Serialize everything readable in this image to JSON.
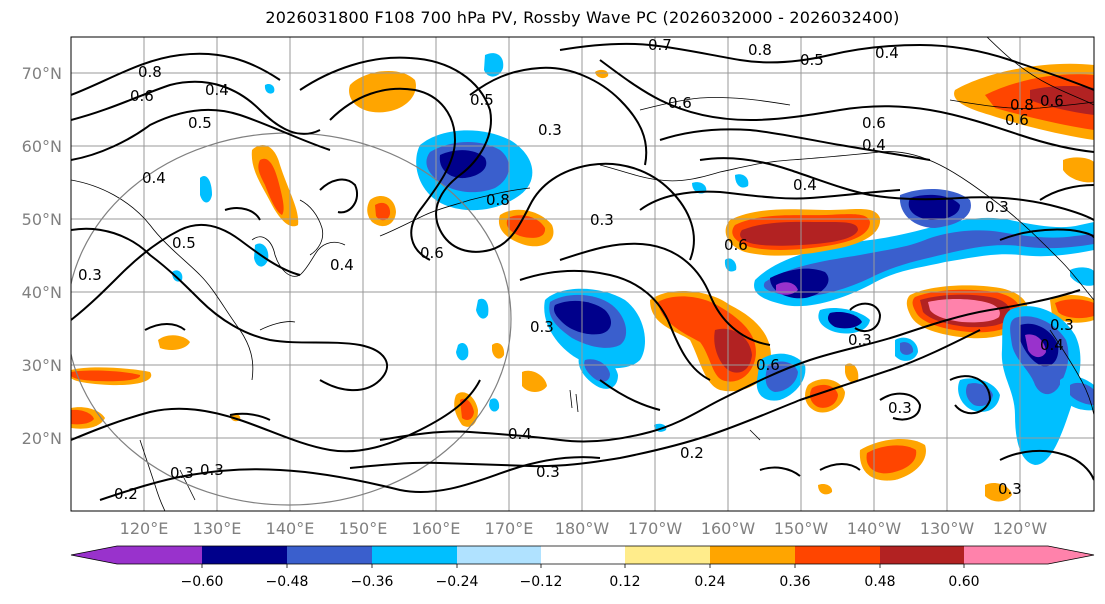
{
  "title": "2026031800 F108 700 hPa PV, Rossby Wave PC (2026032000 - 2026032400)",
  "lat_labels": [
    "70°N",
    "60°N",
    "50°N",
    "40°N",
    "30°N",
    "20°N"
  ],
  "lon_labels": [
    "120°E",
    "130°E",
    "140°E",
    "150°E",
    "160°E",
    "170°E",
    "180°W",
    "170°W",
    "160°W",
    "150°W",
    "140°W",
    "130°W",
    "120°W"
  ],
  "colorbar": {
    "ticks": [
      "−0.60",
      "−0.48",
      "−0.36",
      "−0.24",
      "−0.12",
      "0.12",
      "0.24",
      "0.36",
      "0.48",
      "0.60"
    ],
    "colors": [
      "#9932cc",
      "#00008b",
      "#3a5fcd",
      "#00bfff",
      "#b0e2ff",
      "#ffffff",
      "#ffec8b",
      "#ffa500",
      "#ff4500",
      "#b22222",
      "#ff82ab"
    ]
  },
  "contour_labels": [
    "0.8",
    "0.6",
    "0.5",
    "0.4",
    "0.3",
    "0.7",
    "0.8",
    "0.5",
    "0.4",
    "0.6",
    "0.4",
    "0.6",
    "0.5",
    "0.8",
    "0.3",
    "0.6",
    "0.3",
    "0.4",
    "0.3",
    "0.5",
    "0.3",
    "0.6",
    "0.6",
    "0.4",
    "0.3",
    "0.3",
    "0.2",
    "0.2",
    "0.3",
    "0.3",
    "0.4",
    "0.6",
    "0.3",
    "0.3",
    "0.8",
    "0.6",
    "0.4",
    "0.4",
    "0.3"
  ]
}
